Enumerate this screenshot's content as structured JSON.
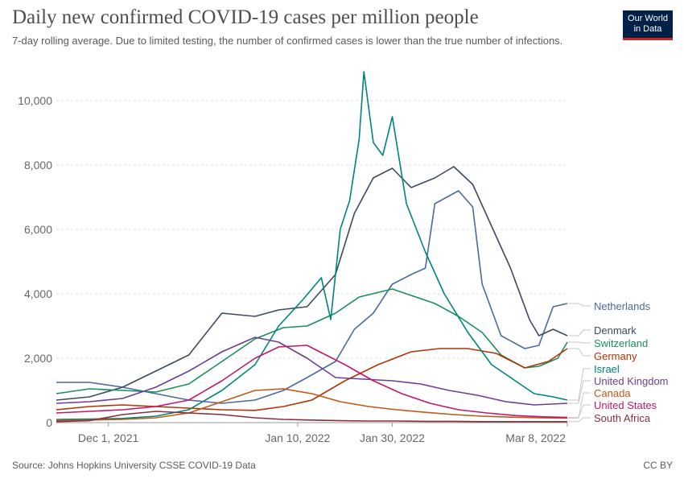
{
  "title": "Daily new confirmed COVID-19 cases per million people",
  "subtitle": "7-day rolling average. Due to limited testing, the number of confirmed cases is lower than the true number of infections.",
  "logo": {
    "line1": "Our World",
    "line2": "in Data"
  },
  "source": "Source: Johns Hopkins University CSSE COVID-19 Data",
  "license": "CC BY",
  "chart_data": {
    "type": "line",
    "title": "Daily new confirmed COVID-19 cases per million people",
    "x_start": "2021-11-20",
    "x_end": "2022-03-08",
    "ylim": [
      0,
      11000
    ],
    "yticks": [
      0,
      2000,
      4000,
      6000,
      8000,
      10000
    ],
    "ytick_labels": [
      "0",
      "2,000",
      "4,000",
      "6,000",
      "8,000",
      "10,000"
    ],
    "xticks": [
      {
        "date": "2021-12-01",
        "label": "Dec 1, 2021"
      },
      {
        "date": "2022-01-10",
        "label": "Jan 10, 2022"
      },
      {
        "date": "2022-01-30",
        "label": "Jan 30, 2022"
      },
      {
        "date": "2022-03-08",
        "label": "Mar 8, 2022"
      }
    ],
    "grid": "horizontal-dashed",
    "legend_placement": "right",
    "series": [
      {
        "name": "Netherlands",
        "color": "#4c6a9c",
        "x": [
          "2021-11-20",
          "2021-11-27",
          "2021-12-04",
          "2021-12-11",
          "2021-12-18",
          "2021-12-25",
          "2022-01-01",
          "2022-01-07",
          "2022-01-12",
          "2022-01-18",
          "2022-01-22",
          "2022-01-26",
          "2022-01-30",
          "2022-02-03",
          "2022-02-06",
          "2022-02-08",
          "2022-02-13",
          "2022-02-16",
          "2022-02-18",
          "2022-02-22",
          "2022-02-27",
          "2022-03-02",
          "2022-03-05",
          "2022-03-08"
        ],
        "y": [
          1250,
          1250,
          1100,
          900,
          700,
          600,
          700,
          1000,
          1400,
          1900,
          2900,
          3400,
          4300,
          4600,
          4800,
          6800,
          7200,
          6700,
          4300,
          2700,
          2300,
          2400,
          3600,
          3700
        ]
      },
      {
        "name": "Denmark",
        "color": "#3b4b5f",
        "x": [
          "2021-11-20",
          "2021-11-27",
          "2021-12-04",
          "2021-12-11",
          "2021-12-18",
          "2021-12-25",
          "2022-01-01",
          "2022-01-06",
          "2022-01-12",
          "2022-01-18",
          "2022-01-22",
          "2022-01-26",
          "2022-01-30",
          "2022-02-03",
          "2022-02-08",
          "2022-02-12",
          "2022-02-16",
          "2022-02-20",
          "2022-02-24",
          "2022-02-28",
          "2022-03-02",
          "2022-03-05",
          "2022-03-08"
        ],
        "y": [
          700,
          800,
          1100,
          1600,
          2100,
          3400,
          3300,
          3500,
          3600,
          4600,
          6500,
          7600,
          7900,
          7300,
          7600,
          7950,
          7400,
          6100,
          4800,
          3200,
          2700,
          2900,
          2700
        ]
      },
      {
        "name": "Switzerland",
        "color": "#18905c",
        "x": [
          "2021-11-20",
          "2021-11-27",
          "2021-12-04",
          "2021-12-11",
          "2021-12-18",
          "2021-12-25",
          "2022-01-01",
          "2022-01-07",
          "2022-01-12",
          "2022-01-18",
          "2022-01-23",
          "2022-01-30",
          "2022-02-04",
          "2022-02-08",
          "2022-02-13",
          "2022-02-18",
          "2022-02-22",
          "2022-02-27",
          "2022-03-02",
          "2022-03-06",
          "2022-03-08"
        ],
        "y": [
          900,
          1050,
          1000,
          950,
          1200,
          1900,
          2600,
          2950,
          3000,
          3400,
          3900,
          4150,
          3900,
          3700,
          3300,
          2800,
          2100,
          1700,
          1750,
          2000,
          2500
        ]
      },
      {
        "name": "Germany",
        "color": "#b13507",
        "x": [
          "2021-11-20",
          "2021-11-27",
          "2021-12-04",
          "2021-12-11",
          "2021-12-18",
          "2021-12-25",
          "2022-01-01",
          "2022-01-07",
          "2022-01-13",
          "2022-01-20",
          "2022-01-27",
          "2022-02-03",
          "2022-02-09",
          "2022-02-15",
          "2022-02-21",
          "2022-02-27",
          "2022-03-04",
          "2022-03-08"
        ],
        "y": [
          400,
          500,
          550,
          500,
          450,
          400,
          380,
          500,
          700,
          1300,
          1800,
          2200,
          2300,
          2300,
          2150,
          1700,
          1900,
          2300
        ]
      },
      {
        "name": "Israel",
        "color": "#00847e",
        "x": [
          "2021-11-20",
          "2021-11-27",
          "2021-12-04",
          "2021-12-11",
          "2021-12-18",
          "2021-12-25",
          "2022-01-01",
          "2022-01-06",
          "2022-01-11",
          "2022-01-15",
          "2022-01-17",
          "2022-01-19",
          "2022-01-21",
          "2022-01-23",
          "2022-01-24",
          "2022-01-26",
          "2022-01-28",
          "2022-01-30",
          "2022-02-02",
          "2022-02-06",
          "2022-02-10",
          "2022-02-15",
          "2022-02-20",
          "2022-02-25",
          "2022-03-01",
          "2022-03-05",
          "2022-03-08"
        ],
        "y": [
          100,
          110,
          130,
          200,
          400,
          1000,
          1800,
          3000,
          3800,
          4500,
          3200,
          6000,
          6900,
          8800,
          10900,
          8700,
          8300,
          9500,
          6800,
          5300,
          4000,
          2800,
          1800,
          1300,
          900,
          800,
          700
        ]
      },
      {
        "name": "United Kingdom",
        "color": "#6d3e91",
        "x": [
          "2021-11-20",
          "2021-11-27",
          "2021-12-04",
          "2021-12-11",
          "2021-12-18",
          "2021-12-25",
          "2022-01-01",
          "2022-01-06",
          "2022-01-12",
          "2022-01-18",
          "2022-01-24",
          "2022-01-30",
          "2022-02-05",
          "2022-02-11",
          "2022-02-17",
          "2022-02-23",
          "2022-03-01",
          "2022-03-08"
        ],
        "y": [
          600,
          650,
          750,
          1100,
          1600,
          2200,
          2650,
          2500,
          2000,
          1400,
          1350,
          1300,
          1200,
          1000,
          850,
          650,
          550,
          600
        ]
      },
      {
        "name": "Canada",
        "color": "#c05917",
        "x": [
          "2021-11-20",
          "2021-11-27",
          "2021-12-04",
          "2021-12-11",
          "2021-12-18",
          "2021-12-25",
          "2022-01-01",
          "2022-01-07",
          "2022-01-13",
          "2022-01-19",
          "2022-01-25",
          "2022-01-31",
          "2022-02-06",
          "2022-02-12",
          "2022-02-18",
          "2022-02-24",
          "2022-03-02",
          "2022-03-08"
        ],
        "y": [
          70,
          80,
          100,
          150,
          300,
          650,
          1000,
          1050,
          900,
          650,
          500,
          400,
          320,
          250,
          200,
          170,
          150,
          140
        ]
      },
      {
        "name": "United States",
        "color": "#c4186b",
        "x": [
          "2021-11-20",
          "2021-11-27",
          "2021-12-04",
          "2021-12-11",
          "2021-12-18",
          "2021-12-25",
          "2022-01-01",
          "2022-01-06",
          "2022-01-12",
          "2022-01-16",
          "2022-01-20",
          "2022-01-26",
          "2022-02-01",
          "2022-02-07",
          "2022-02-13",
          "2022-02-19",
          "2022-02-25",
          "2022-03-03",
          "2022-03-08"
        ],
        "y": [
          300,
          350,
          400,
          500,
          700,
          1300,
          2000,
          2350,
          2400,
          2100,
          1800,
          1300,
          900,
          600,
          400,
          300,
          220,
          180,
          160
        ]
      },
      {
        "name": "South Africa",
        "color": "#883039",
        "x": [
          "2021-11-20",
          "2021-11-27",
          "2021-12-04",
          "2021-12-11",
          "2021-12-18",
          "2021-12-25",
          "2022-01-01",
          "2022-01-07",
          "2022-01-13",
          "2022-01-19",
          "2022-01-25",
          "2022-01-31",
          "2022-02-06",
          "2022-02-12",
          "2022-02-18",
          "2022-02-24",
          "2022-03-02",
          "2022-03-08"
        ],
        "y": [
          30,
          60,
          250,
          350,
          300,
          250,
          150,
          100,
          80,
          60,
          50,
          50,
          40,
          40,
          30,
          30,
          30,
          30
        ]
      }
    ]
  }
}
